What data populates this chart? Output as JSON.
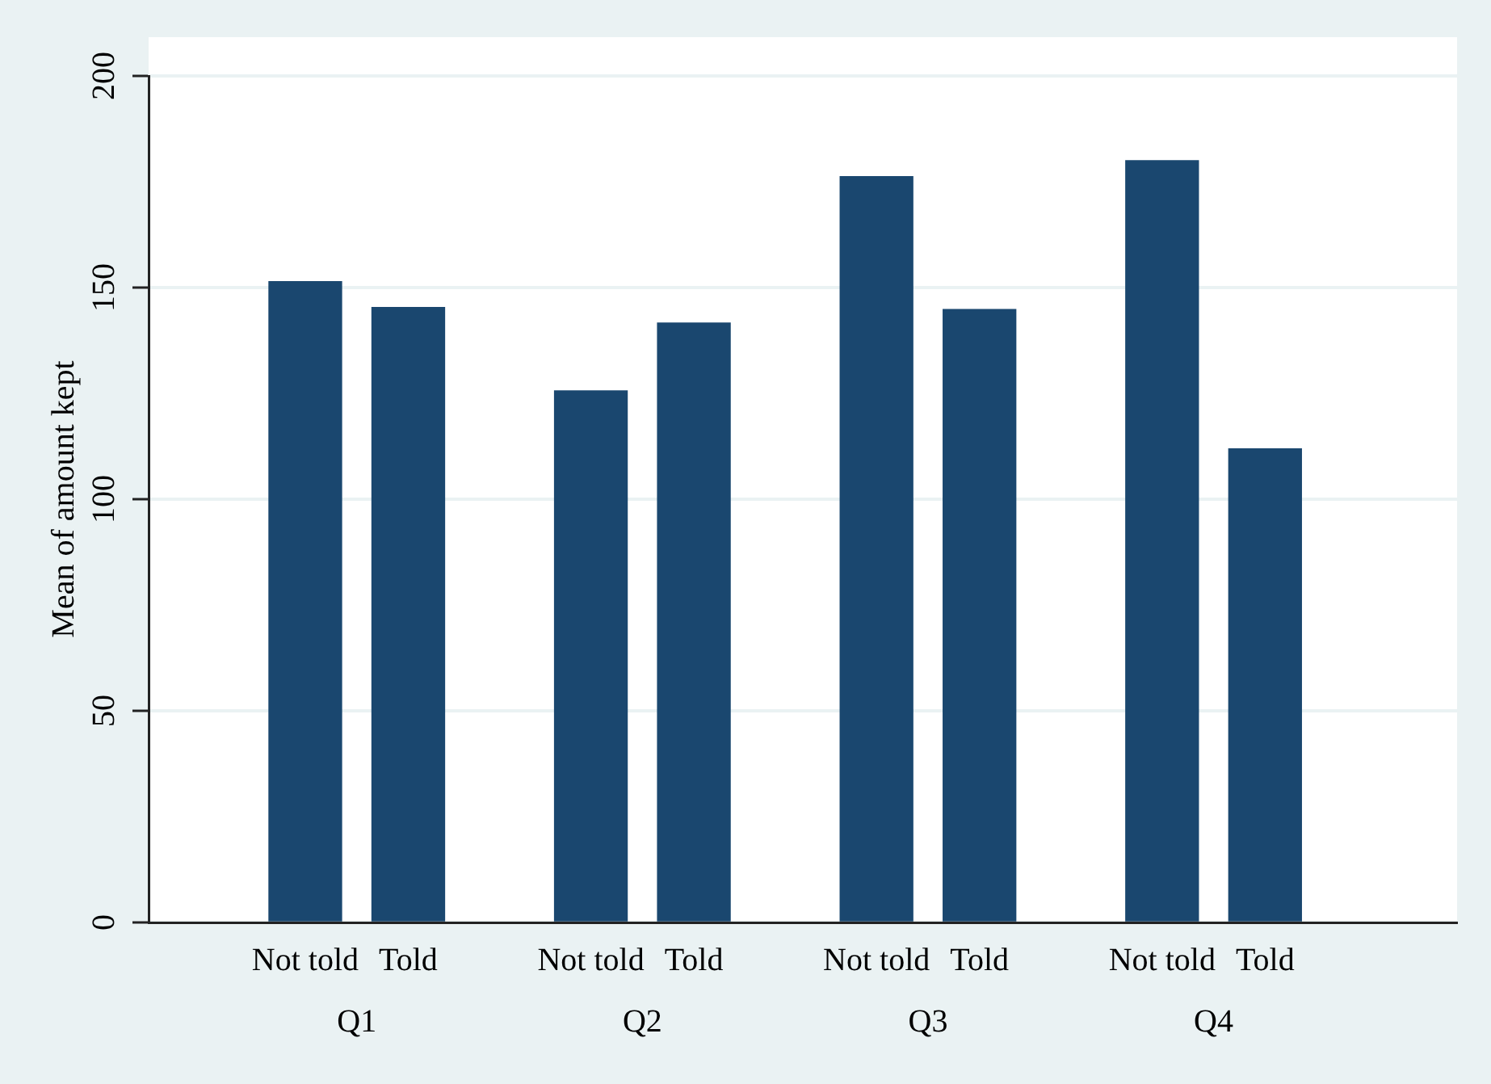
{
  "chart_data": {
    "type": "bar",
    "ylabel": "Mean of amount kept",
    "categories": [
      "Not told",
      "Told",
      "Not told",
      "Told",
      "Not told",
      "Told",
      "Not told",
      "Told"
    ],
    "values": [
      151.4,
      145.3,
      125.6,
      141.6,
      176.2,
      144.8,
      180.0,
      111.9
    ],
    "color": "#1a476f",
    "ylim": [
      0,
      200
    ],
    "yticks": [
      0,
      50,
      100,
      150,
      200
    ],
    "grid": "y",
    "legend": false,
    "annotations": [
      "Q1",
      "Q2",
      "Q3",
      "Q4"
    ]
  }
}
